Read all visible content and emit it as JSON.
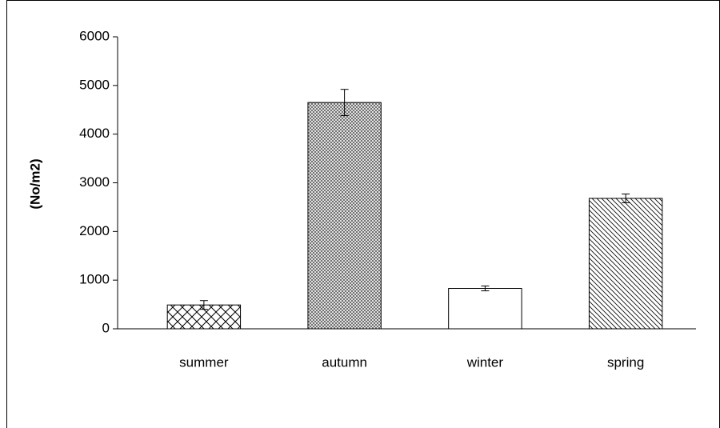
{
  "chart_data": {
    "type": "bar",
    "ylabel": "(No/m2)",
    "categories": [
      "summer",
      "autumn",
      "winter",
      "spring"
    ],
    "values": [
      490,
      4650,
      830,
      2680
    ],
    "errors": [
      90,
      270,
      50,
      90
    ],
    "patterns": [
      "wide-crosshatch",
      "fine-crosshatch",
      "none",
      "diagonal"
    ],
    "color": "#000000",
    "ylim": [
      0,
      6000
    ],
    "yticks": [
      0,
      1000,
      2000,
      3000,
      4000,
      5000,
      6000
    ],
    "grid": false
  }
}
